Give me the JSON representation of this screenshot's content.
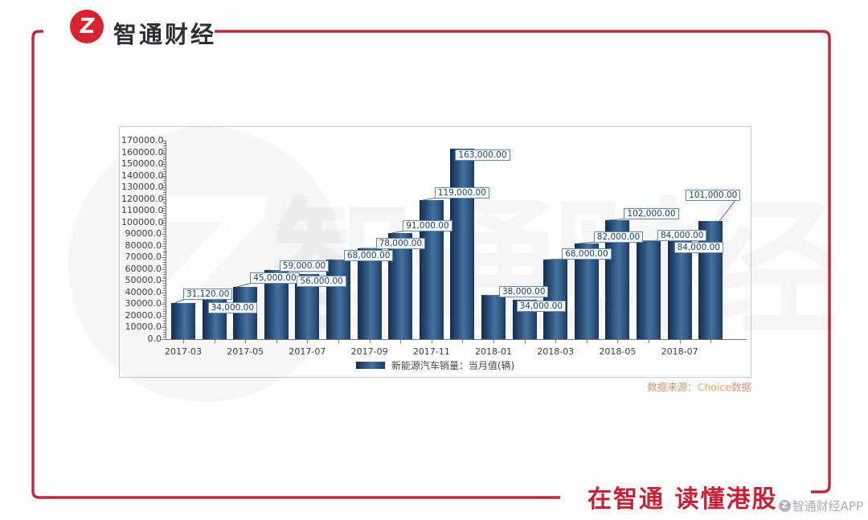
{
  "header": {
    "brand": "智通财经"
  },
  "footer": {
    "slogan": "在智通  读懂港股"
  },
  "watermarks": {
    "big_text": "智通财经",
    "logo_glyph": "Z",
    "app_credit": "智通财经APP"
  },
  "source_note": {
    "prefix": "数据来源：",
    "provider": "Choice",
    "suffix": "数据"
  },
  "colors": {
    "brand_red": "#d6232f",
    "frame_red": "#bd2841",
    "slogan_red": "#c32336",
    "bar_dark": "#142e4c",
    "bar_light": "#46719f",
    "callout_border": "#6089ad",
    "callout_text": "#17406b",
    "source_orange": "#f6a255"
  },
  "chart_data": {
    "type": "bar",
    "title": "",
    "legend": [
      {
        "label": "新能源汽车销量：当月值(辆)",
        "color": "#1f4571"
      }
    ],
    "legend_position": "bottom-center",
    "grid": false,
    "categories": [
      "2017-03",
      "2017-04",
      "2017-05",
      "2017-06",
      "2017-07",
      "2017-08",
      "2017-09",
      "2017-10",
      "2017-11",
      "2017-12",
      "2018-01",
      "2018-02",
      "2018-03",
      "2018-04",
      "2018-05",
      "2018-06",
      "2018-07",
      "2018-08"
    ],
    "values": [
      31120,
      34000,
      45000,
      59000,
      56000,
      68000,
      78000,
      91000,
      119000,
      163000,
      38000,
      34000,
      68000,
      82000,
      102000,
      84000,
      84000,
      101000
    ],
    "point_labels": [
      "31,120.00",
      "34,000.00",
      "45,000.00",
      "59,000.00",
      "56,000.00",
      "68,000.00",
      "78,000.00",
      "91,000.00",
      "119,000.00",
      "163,000.00",
      "38,000.00",
      "34,000.00",
      "68,000.00",
      "82,000.00",
      "102,000.00",
      "84,000.00",
      "84,000.00",
      "101,000.00"
    ],
    "x_tick_labels": [
      "2017-03",
      "2017-05",
      "2017-07",
      "2017-09",
      "2017-11",
      "2018-01",
      "2018-03",
      "2018-05",
      "2018-07"
    ],
    "ylim": [
      0,
      170000
    ],
    "y_tick_step": 10000,
    "y_minor_step": 2000,
    "ylabel": "",
    "xlabel": ""
  }
}
